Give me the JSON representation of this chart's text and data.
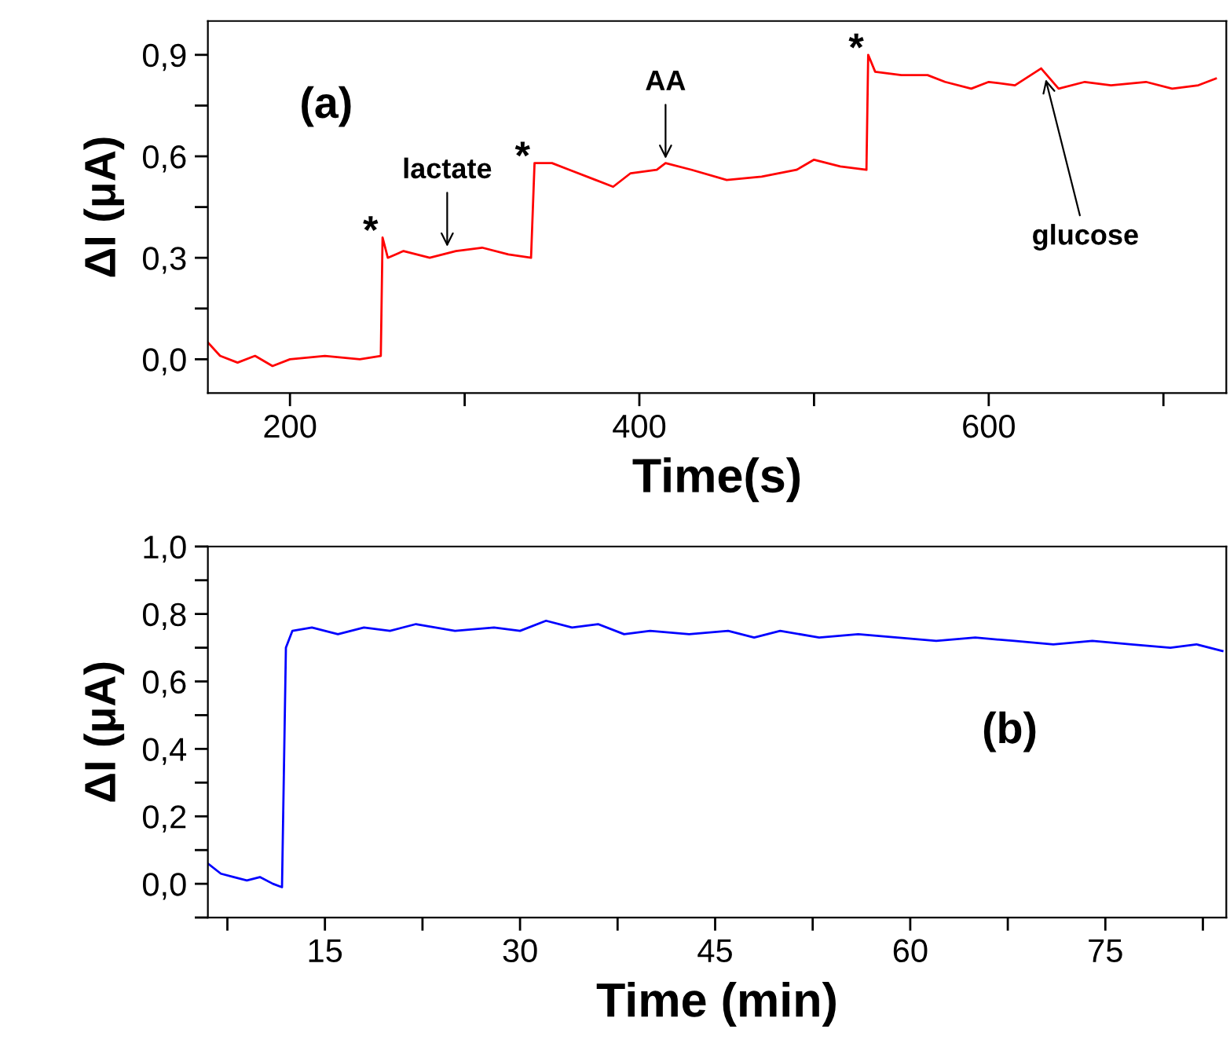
{
  "chart_data": [
    {
      "type": "line",
      "xlabel": "Time(s)",
      "ylabel": "ΔI (μA)",
      "xlim": [
        153,
        736
      ],
      "ylim": [
        -0.1,
        1.0
      ],
      "xticks": [
        200,
        {
          "value": 300,
          "label": null
        },
        400,
        {
          "value": 500,
          "label": null
        },
        600,
        {
          "value": 700,
          "label": null
        }
      ],
      "yticks": [
        {
          "value": 0.0,
          "label": "0,0"
        },
        {
          "value": 0.15,
          "label": null
        },
        {
          "value": 0.3,
          "label": "0,3"
        },
        {
          "value": 0.45,
          "label": null
        },
        {
          "value": 0.6,
          "label": "0,6"
        },
        {
          "value": 0.75,
          "label": null
        },
        {
          "value": 0.9,
          "label": "0,9"
        }
      ],
      "grid": false,
      "legend": false,
      "series": [
        {
          "color": "#ff0000",
          "x": [
            153,
            160,
            170,
            180,
            190,
            200,
            220,
            240,
            252,
            253,
            256,
            265,
            280,
            295,
            310,
            325,
            338,
            340,
            350,
            360,
            375,
            385,
            395,
            410,
            415,
            430,
            450,
            470,
            490,
            500,
            515,
            530,
            531,
            535,
            550,
            565,
            575,
            590,
            600,
            615,
            630,
            640,
            655,
            670,
            690,
            705,
            720,
            730
          ],
          "values": [
            0.05,
            0.01,
            -0.01,
            0.01,
            -0.02,
            0.0,
            0.01,
            0.0,
            0.01,
            0.36,
            0.3,
            0.32,
            0.3,
            0.32,
            0.33,
            0.31,
            0.3,
            0.58,
            0.58,
            0.56,
            0.53,
            0.51,
            0.55,
            0.56,
            0.58,
            0.56,
            0.53,
            0.54,
            0.56,
            0.59,
            0.57,
            0.56,
            0.9,
            0.85,
            0.84,
            0.84,
            0.82,
            0.8,
            0.82,
            0.81,
            0.86,
            0.8,
            0.82,
            0.81,
            0.82,
            0.8,
            0.81,
            0.83
          ]
        }
      ],
      "annotations": [
        "(a)",
        {
          "text": "*",
          "x": 253,
          "y": 0.36
        },
        {
          "text": "*",
          "x": 340,
          "y": 0.58
        },
        {
          "text": "*",
          "x": 531,
          "y": 0.9
        },
        {
          "text": "lactate",
          "x": 290,
          "y": 0.32
        },
        {
          "text": "AA",
          "x": 415,
          "y": 0.58
        },
        {
          "text": "glucose",
          "x": 632,
          "y": 0.84
        }
      ]
    },
    {
      "type": "line",
      "xlabel": "Time (min)",
      "ylabel": "ΔI (μA)",
      "xlim": [
        6,
        84.3
      ],
      "ylim": [
        -0.1,
        1.0
      ],
      "xticks": [
        {
          "value": 7.5,
          "label": null
        },
        15,
        {
          "value": 22.5,
          "label": null
        },
        30,
        {
          "value": 37.5,
          "label": null
        },
        45,
        {
          "value": 52.5,
          "label": null
        },
        60,
        {
          "value": 67.5,
          "label": null
        },
        75,
        {
          "value": 82.5,
          "label": null
        }
      ],
      "yticks": [
        {
          "value": -0.1,
          "label": null
        },
        {
          "value": 0.0,
          "label": "0,0"
        },
        {
          "value": 0.1,
          "label": null
        },
        {
          "value": 0.2,
          "label": "0,2"
        },
        {
          "value": 0.3,
          "label": null
        },
        {
          "value": 0.4,
          "label": "0,4"
        },
        {
          "value": 0.5,
          "label": null
        },
        {
          "value": 0.6,
          "label": "0,6"
        },
        {
          "value": 0.7,
          "label": null
        },
        {
          "value": 0.8,
          "label": "0,8"
        },
        {
          "value": 0.9,
          "label": null
        },
        {
          "value": 1.0,
          "label": "1,0"
        }
      ],
      "grid": false,
      "legend": false,
      "series": [
        {
          "color": "#0000ff",
          "x": [
            6,
            7,
            8,
            9,
            10,
            11,
            11.7,
            12,
            12.5,
            14,
            16,
            18,
            20,
            22,
            25,
            28,
            30,
            32,
            34,
            36,
            38,
            40,
            43,
            46,
            48,
            50,
            53,
            56,
            59,
            62,
            65,
            68,
            71,
            74,
            77,
            80,
            82,
            84
          ],
          "values": [
            0.06,
            0.03,
            0.02,
            0.01,
            0.02,
            0.0,
            -0.01,
            0.7,
            0.75,
            0.76,
            0.74,
            0.76,
            0.75,
            0.77,
            0.75,
            0.76,
            0.75,
            0.78,
            0.76,
            0.77,
            0.74,
            0.75,
            0.74,
            0.75,
            0.73,
            0.75,
            0.73,
            0.74,
            0.73,
            0.72,
            0.73,
            0.72,
            0.71,
            0.72,
            0.71,
            0.7,
            0.71,
            0.69
          ]
        }
      ],
      "annotations": [
        "(b)"
      ]
    }
  ]
}
